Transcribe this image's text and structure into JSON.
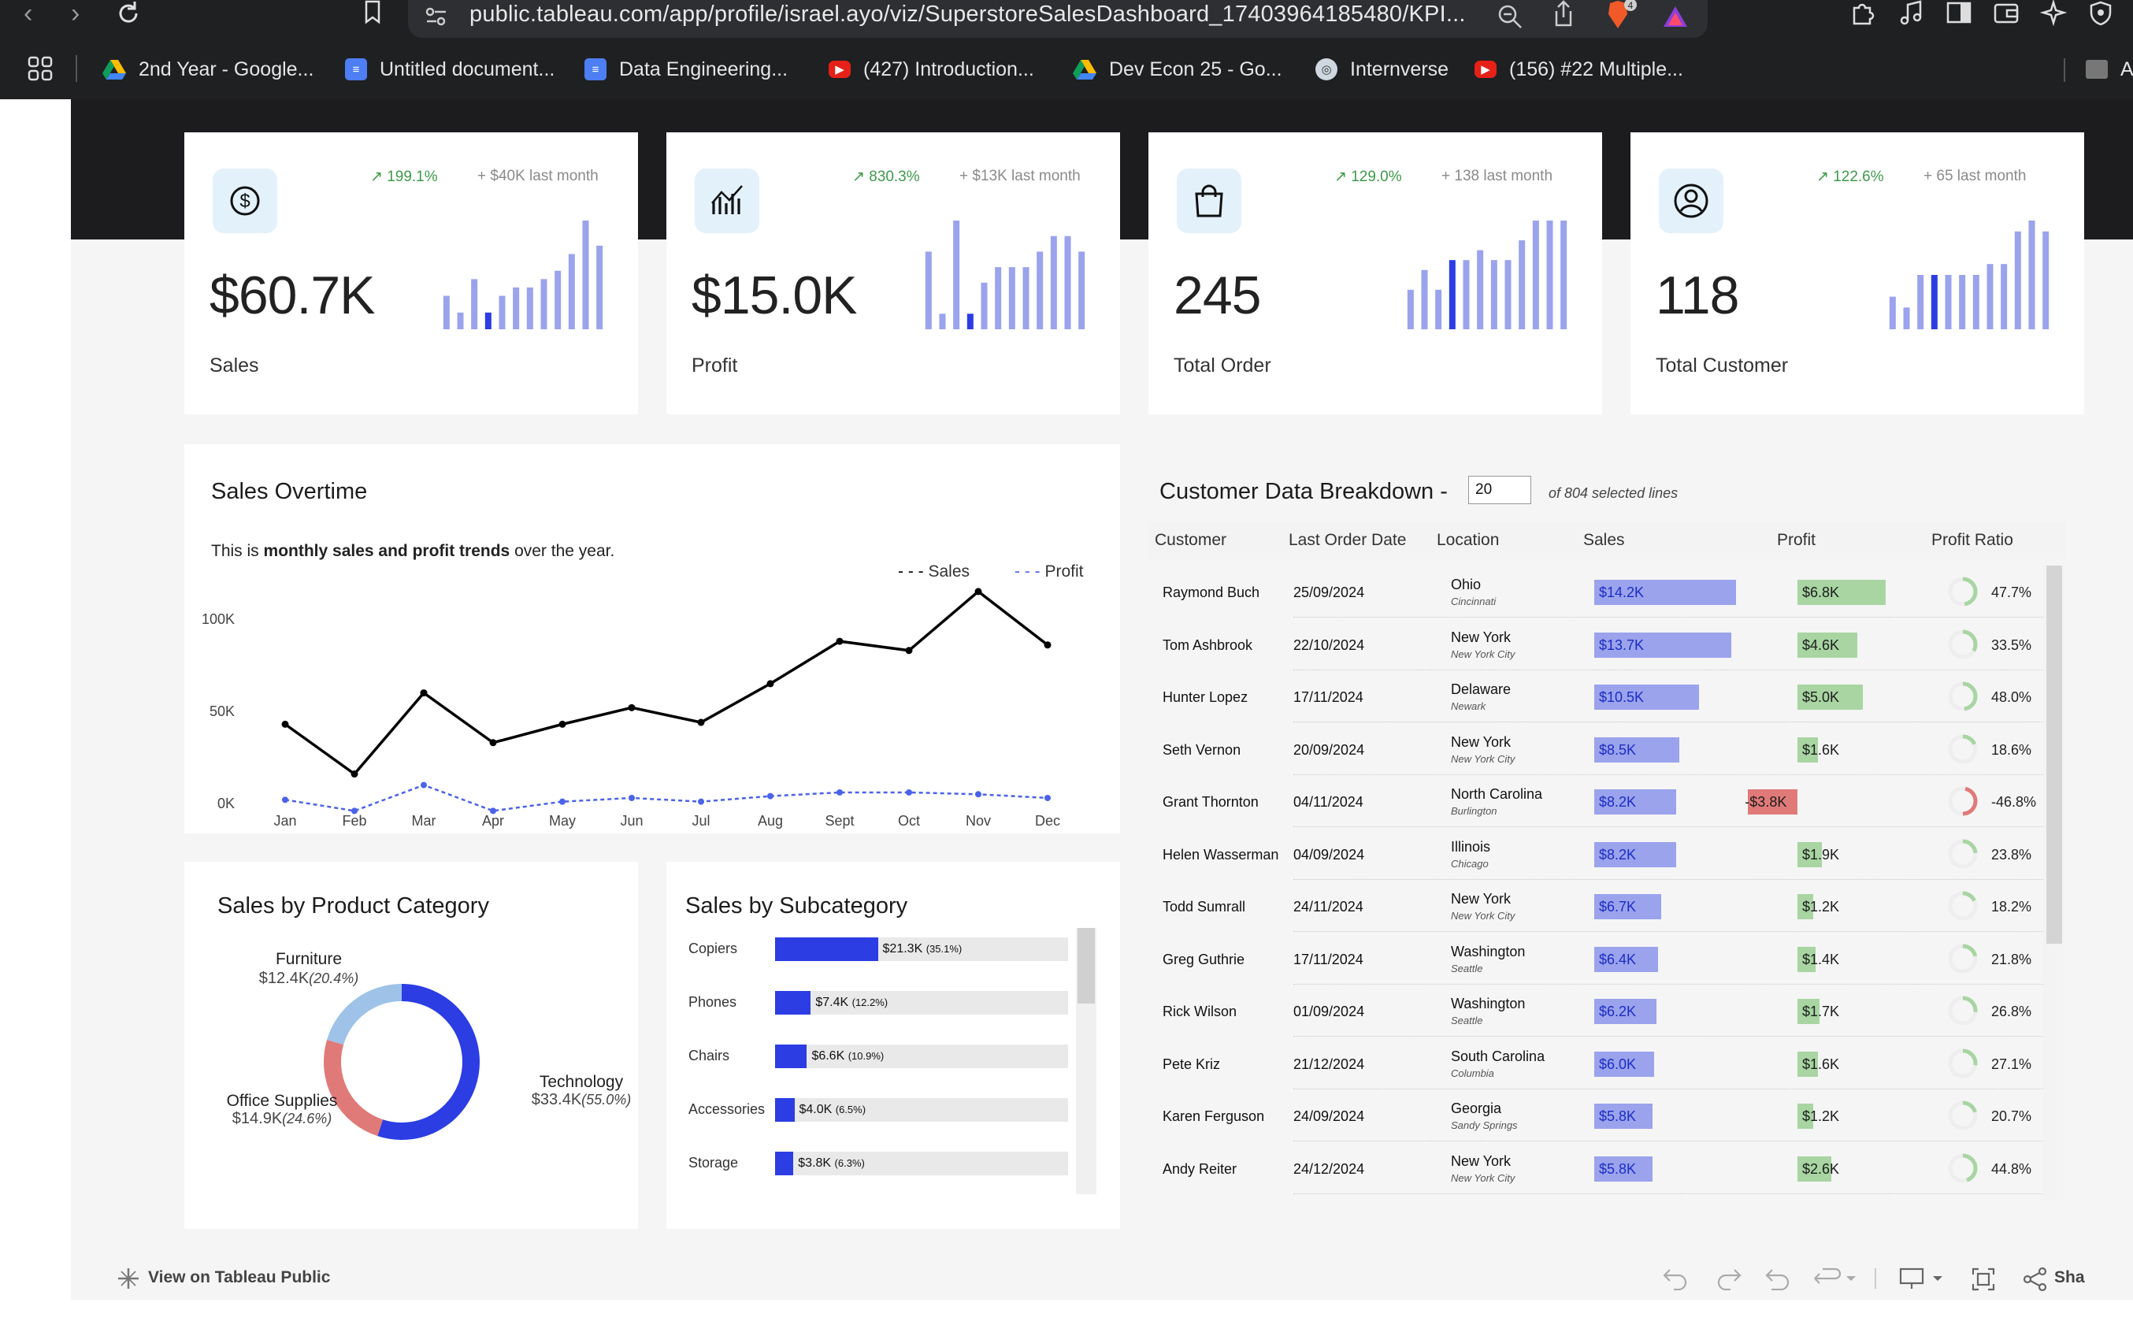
{
  "browser": {
    "url": "public.tableau.com/app/profile/israel.ayo/viz/SuperstoreSalesDashboard_17403964185480/KPI...",
    "bookmarks": [
      {
        "label": "2nd Year - Google...",
        "icon": "drive-icon"
      },
      {
        "label": "Untitled document...",
        "icon": "docs-icon"
      },
      {
        "label": "Data Engineering...",
        "icon": "docs-icon"
      },
      {
        "label": "(427) Introduction...",
        "icon": "youtube-icon"
      },
      {
        "label": "Dev Econ 25 - Go...",
        "icon": "drive-icon"
      },
      {
        "label": "Internverse",
        "icon": "globe-icon"
      },
      {
        "label": "(156) #22 Multiple...",
        "icon": "youtube-icon"
      }
    ],
    "bookmarks_overflow": "A",
    "brave_badge": "4"
  },
  "kpis": [
    {
      "label": "Sales",
      "value": "$60.7K",
      "change": "199.1%",
      "last_month": "+ $40K last month",
      "icon": "dollar-icon",
      "spark": [
        4,
        2,
        6,
        2,
        4,
        5,
        5,
        6,
        7,
        9,
        13,
        10
      ],
      "highlight": 3
    },
    {
      "label": "Profit",
      "value": "$15.0K",
      "change": "830.3%",
      "last_month": "+ $13K last month",
      "icon": "chart-icon",
      "spark": [
        5,
        1,
        7,
        1,
        3,
        4,
        4,
        4,
        5,
        6,
        6,
        5
      ],
      "highlight": 3
    },
    {
      "label": "Total Order",
      "value": "245",
      "change": "129.0%",
      "last_month": "+ 138 last month",
      "icon": "shopping-bag-icon",
      "spark": [
        4,
        6,
        4,
        7,
        7,
        8,
        7,
        7,
        9,
        11,
        11,
        11
      ],
      "highlight": 3
    },
    {
      "label": "Total Customer",
      "value": "118",
      "change": "122.6%",
      "last_month": "+ 65 last month",
      "icon": "user-icon",
      "spark": [
        3,
        2,
        5,
        5,
        5,
        5,
        5,
        6,
        6,
        9,
        10,
        9
      ],
      "highlight": 3
    }
  ],
  "sales_overtime": {
    "title": "Sales Overtime",
    "subtitle_pre": "This is ",
    "subtitle_bold": "monthly sales and profit trends",
    "subtitle_post": " over the year.",
    "legend_sales": "Sales",
    "legend_profit": "Profit"
  },
  "chart_data": [
    {
      "type": "line",
      "title": "Sales Overtime",
      "x": [
        "Jan",
        "Feb",
        "Mar",
        "Apr",
        "May",
        "Jun",
        "Jul",
        "Aug",
        "Sept",
        "Oct",
        "Nov",
        "Dec"
      ],
      "y_ticks": [
        "100K",
        "50K",
        "0K"
      ],
      "ylim": [
        0,
        120000
      ],
      "series": [
        {
          "name": "Sales",
          "values": [
            43000,
            16000,
            60000,
            33000,
            43000,
            52000,
            44000,
            65000,
            88000,
            83000,
            115000,
            86000
          ],
          "color": "#000000"
        },
        {
          "name": "Profit",
          "values": [
            2000,
            -4000,
            10000,
            -4000,
            1000,
            3000,
            1000,
            4000,
            6000,
            6000,
            5000,
            3000
          ],
          "color": "#4a63e8"
        }
      ]
    },
    {
      "type": "pie",
      "title": "Sales by Product Category",
      "categories": [
        "Technology",
        "Office Supplies",
        "Furniture"
      ],
      "values": [
        33.4,
        14.9,
        12.4
      ],
      "value_labels": [
        "$33.4K",
        "$14.9K",
        "$12.4K"
      ],
      "pct_labels": [
        "(55.0%)",
        "(24.6%)",
        "(20.4%)"
      ],
      "colors": [
        "#2b3de3",
        "#e07a78",
        "#9ec2e8"
      ]
    },
    {
      "type": "bar",
      "title": "Sales by Subcategory",
      "categories": [
        "Copiers",
        "Phones",
        "Chairs",
        "Accessories",
        "Storage"
      ],
      "values": [
        21.3,
        7.4,
        6.6,
        4.0,
        3.8
      ],
      "value_labels": [
        "$21.3K",
        "$7.4K",
        "$6.6K",
        "$4.0K",
        "$3.8K"
      ],
      "pct_labels": [
        "(35.1%)",
        "(12.2%)",
        "(10.9%)",
        "(6.5%)",
        "(6.3%)"
      ],
      "xlim": [
        0,
        60.7
      ]
    }
  ],
  "customer_table": {
    "title": "Customer Data Breakdown -",
    "input_value": "20",
    "of_text": "of 804 selected lines",
    "headers": [
      "Customer",
      "Last Order Date",
      "Location",
      "Sales",
      "Profit",
      "Profit Ratio"
    ],
    "rows": [
      {
        "name": "Raymond Buch",
        "date": "25/09/2024",
        "state": "Ohio",
        "city": "Cincinnati",
        "sales": "$14.2K",
        "sales_k": 14.2,
        "profit": "$6.8K",
        "profit_k": 6.8,
        "ratio": "47.7%",
        "ratio_v": 47.7
      },
      {
        "name": "Tom Ashbrook",
        "date": "22/10/2024",
        "state": "New York",
        "city": "New York City",
        "sales": "$13.7K",
        "sales_k": 13.7,
        "profit": "$4.6K",
        "profit_k": 4.6,
        "ratio": "33.5%",
        "ratio_v": 33.5
      },
      {
        "name": "Hunter Lopez",
        "date": "17/11/2024",
        "state": "Delaware",
        "city": "Newark",
        "sales": "$10.5K",
        "sales_k": 10.5,
        "profit": "$5.0K",
        "profit_k": 5.0,
        "ratio": "48.0%",
        "ratio_v": 48.0
      },
      {
        "name": "Seth Vernon",
        "date": "20/09/2024",
        "state": "New York",
        "city": "New York City",
        "sales": "$8.5K",
        "sales_k": 8.5,
        "profit": "$1.6K",
        "profit_k": 1.6,
        "ratio": "18.6%",
        "ratio_v": 18.6
      },
      {
        "name": "Grant Thornton",
        "date": "04/11/2024",
        "state": "North Carolina",
        "city": "Burlington",
        "sales": "$8.2K",
        "sales_k": 8.2,
        "profit": "-$3.8K",
        "profit_k": -3.8,
        "ratio": "-46.8%",
        "ratio_v": -46.8
      },
      {
        "name": "Helen Wasserman",
        "date": "04/09/2024",
        "state": "Illinois",
        "city": "Chicago",
        "sales": "$8.2K",
        "sales_k": 8.2,
        "profit": "$1.9K",
        "profit_k": 1.9,
        "ratio": "23.8%",
        "ratio_v": 23.8
      },
      {
        "name": "Todd Sumrall",
        "date": "24/11/2024",
        "state": "New York",
        "city": "New York City",
        "sales": "$6.7K",
        "sales_k": 6.7,
        "profit": "$1.2K",
        "profit_k": 1.2,
        "ratio": "18.2%",
        "ratio_v": 18.2
      },
      {
        "name": "Greg Guthrie",
        "date": "17/11/2024",
        "state": "Washington",
        "city": "Seattle",
        "sales": "$6.4K",
        "sales_k": 6.4,
        "profit": "$1.4K",
        "profit_k": 1.4,
        "ratio": "21.8%",
        "ratio_v": 21.8
      },
      {
        "name": "Rick Wilson",
        "date": "01/09/2024",
        "state": "Washington",
        "city": "Seattle",
        "sales": "$6.2K",
        "sales_k": 6.2,
        "profit": "$1.7K",
        "profit_k": 1.7,
        "ratio": "26.8%",
        "ratio_v": 26.8
      },
      {
        "name": "Pete Kriz",
        "date": "21/12/2024",
        "state": "South Carolina",
        "city": "Columbia",
        "sales": "$6.0K",
        "sales_k": 6.0,
        "profit": "$1.6K",
        "profit_k": 1.6,
        "ratio": "27.1%",
        "ratio_v": 27.1
      },
      {
        "name": "Karen Ferguson",
        "date": "24/09/2024",
        "state": "Georgia",
        "city": "Sandy Springs",
        "sales": "$5.8K",
        "sales_k": 5.8,
        "profit": "$1.2K",
        "profit_k": 1.2,
        "ratio": "20.7%",
        "ratio_v": 20.7
      },
      {
        "name": "Andy Reiter",
        "date": "24/12/2024",
        "state": "New York",
        "city": "New York City",
        "sales": "$5.8K",
        "sales_k": 5.8,
        "profit": "$2.6K",
        "profit_k": 2.6,
        "ratio": "44.8%",
        "ratio_v": 44.8
      }
    ]
  },
  "footer": {
    "view_on_tableau": "View on Tableau Public",
    "share": "Sha"
  },
  "colors": {
    "accent_blue": "#2b3de3",
    "light_blue_bar": "#9aa3ec",
    "profit_positive": "#a8d5a2",
    "profit_negative": "#e07a78",
    "kpi_green": "#3e9a4a"
  }
}
